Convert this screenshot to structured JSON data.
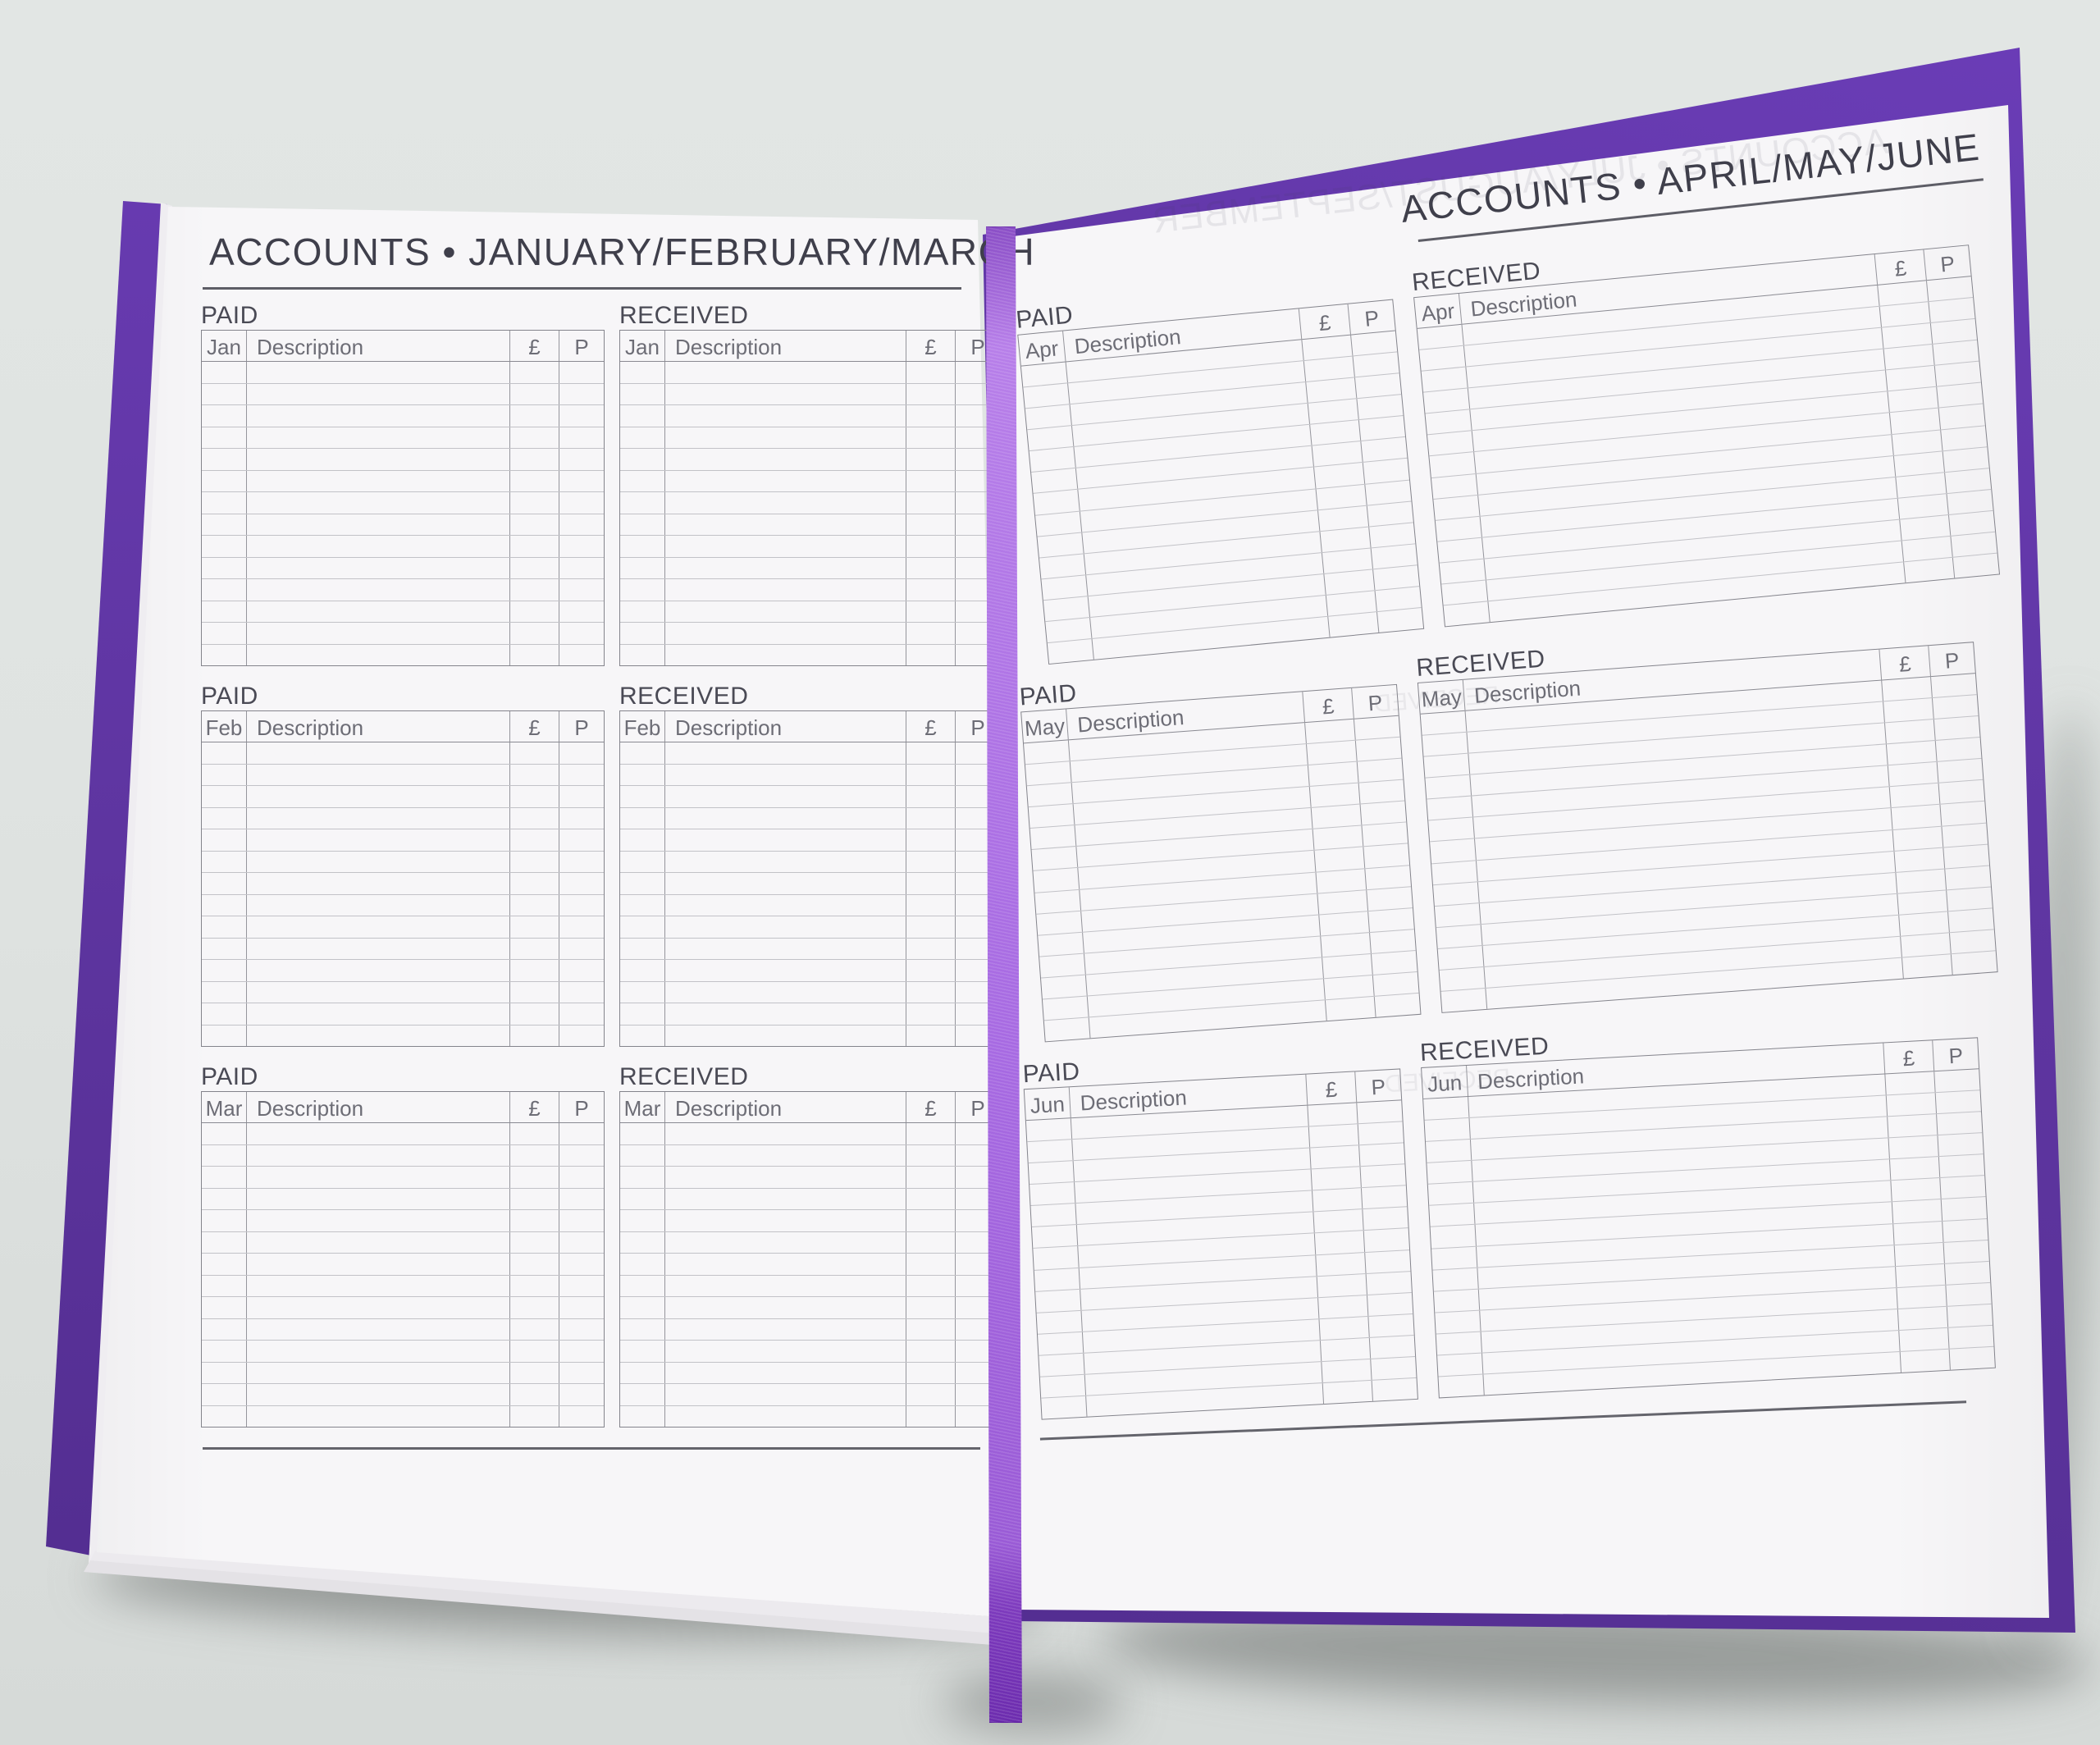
{
  "labels": {
    "paid": "PAID",
    "received": "RECEIVED",
    "description": "Description",
    "pound": "£",
    "pence": "P"
  },
  "left_page": {
    "title": "ACCOUNTS • JANUARY/FEBRUARY/MARCH",
    "months": [
      "Jan",
      "Feb",
      "Mar"
    ]
  },
  "right_page": {
    "title": "ACCOUNTS • APRIL/MAY/JUNE",
    "months": [
      "Apr",
      "May",
      "Jun"
    ],
    "ghost_title": "ACCOUNTS • JULY/AUGUST/SEPTEMBER"
  },
  "table": {
    "rows_per_table": 14
  },
  "colors": {
    "surface": "#dfe3e1",
    "page": "#f7f6f8",
    "cover": "#5e35a0",
    "coverDark": "#4f2b8b",
    "ribbon": "#a76ae2",
    "ribbonDark": "#6c2cae",
    "ink": "#3f3f4b",
    "lineDark": "#84848c",
    "lineLight": "#c2c2c7",
    "labelInk": "#4a4a55",
    "cellInk": "#6d6d76"
  }
}
